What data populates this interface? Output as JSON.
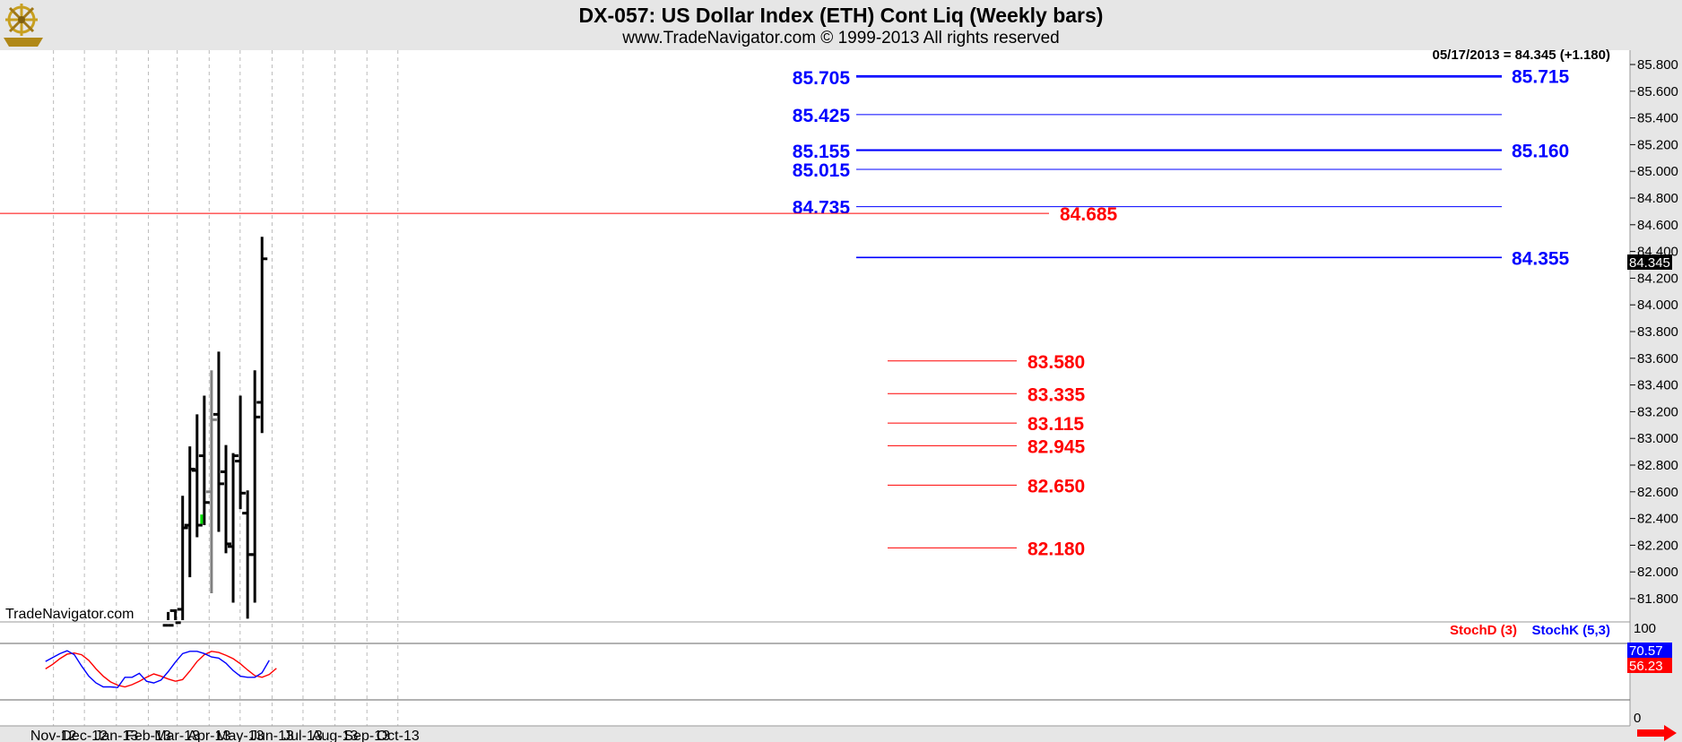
{
  "header": {
    "title": "DX-057:  US Dollar Index (ETH) Cont Liq  (Weekly bars)",
    "copyright": "www.TradeNavigator.com © 1999-2013 All rights reserved",
    "last_value": "05/17/2013 = 84.345 (+1.180)",
    "watermark": "TradeNavigator.com",
    "logo_icon": "ship-wheel-logo"
  },
  "colors": {
    "blue_levels": "#0000ff",
    "red_levels": "#ff0000",
    "bar": "#000000",
    "stochK": "#0000ff",
    "stochD": "#ff0000",
    "price_tag": "#000000",
    "stochK_tag": "#0000ff",
    "stochD_tag": "#ff0000"
  },
  "chart_data": [
    {
      "type": "ohlc",
      "title": "DX-057:  US Dollar Index (ETH) Cont Liq  (Weekly bars)",
      "ylim": [
        81.6,
        85.9
      ],
      "grid": true,
      "x_ticks": [
        "Nov-12",
        "Dec-12",
        "Jan-13",
        "Feb-13",
        "Mar-13",
        "Apr-13",
        "May-13",
        "Jun-13",
        "Jul-13",
        "Aug-13",
        "Sep-13",
        "Oct-13"
      ],
      "y_ticks": [
        "85.800",
        "85.600",
        "85.400",
        "85.200",
        "85.000",
        "84.800",
        "84.600",
        "84.400",
        "84.200",
        "84.000",
        "83.800",
        "83.600",
        "83.400",
        "83.200",
        "83.000",
        "82.800",
        "82.600",
        "82.400",
        "82.200",
        "82.000",
        "81.800"
      ],
      "last_price_tag": "84.345",
      "bars": [
        {
          "date": "2013-02-22",
          "high": 81.7,
          "low": 81.6,
          "open": 81.6,
          "close": 81.6,
          "color": "#000000"
        },
        {
          "date": "2013-03-01",
          "high": 81.72,
          "low": 81.6,
          "open": 81.71,
          "close": 81.62,
          "color": "#000000"
        },
        {
          "date": "2013-03-08",
          "high": 82.57,
          "low": 81.6,
          "open": 81.72,
          "close": 82.33,
          "color": "#000000"
        },
        {
          "date": "2013-03-15",
          "high": 82.94,
          "low": 81.96,
          "open": 82.35,
          "close": 82.77,
          "color": "#000000"
        },
        {
          "date": "2013-03-22",
          "high": 83.18,
          "low": 82.26,
          "open": 82.76,
          "close": 82.35,
          "color": "#000000"
        },
        {
          "date": "2013-03-29",
          "high": 83.32,
          "low": 82.35,
          "open": 82.87,
          "close": 82.52,
          "color": "#000000"
        },
        {
          "date": "2013-04-05",
          "high": 83.51,
          "low": 81.84,
          "open": 82.6,
          "close": 83.14,
          "color": "#808080"
        },
        {
          "date": "2013-04-12",
          "high": 83.65,
          "low": 82.3,
          "open": 83.18,
          "close": 82.66,
          "color": "#000000"
        },
        {
          "date": "2013-04-19",
          "high": 82.95,
          "low": 82.14,
          "open": 82.75,
          "close": 82.21,
          "color": "#000000"
        },
        {
          "date": "2013-04-26",
          "high": 82.89,
          "low": 81.77,
          "open": 82.19,
          "close": 82.87,
          "color": "#000000"
        },
        {
          "date": "2013-05-03",
          "high": 83.32,
          "low": 82.47,
          "open": 82.83,
          "close": 82.59,
          "color": "#000000"
        },
        {
          "date": "2013-05-10",
          "high": 82.61,
          "low": 81.65,
          "open": 82.44,
          "close": 82.13,
          "color": "#000000"
        },
        {
          "date": "2013-05-17",
          "high": 83.51,
          "low": 81.77,
          "open": 82.13,
          "close": 83.16,
          "color": "#000000"
        },
        {
          "date": "2013-05-24",
          "high": 84.51,
          "low": 83.04,
          "open": 83.27,
          "close": 84.345,
          "color": "#000000"
        }
      ],
      "green_tick": {
        "date": "2013-03-29",
        "from": 82.43,
        "to": 82.36
      },
      "blue_levels": [
        {
          "value": 85.705,
          "label": "85.705",
          "side": "left"
        },
        {
          "value": 85.715,
          "label": "85.715",
          "side": "right"
        },
        {
          "value": 85.425,
          "label": "85.425",
          "side": "left"
        },
        {
          "value": 85.155,
          "label": "85.155",
          "side": "left"
        },
        {
          "value": 85.16,
          "label": "85.160",
          "side": "right"
        },
        {
          "value": 85.015,
          "label": "85.015",
          "side": "left"
        },
        {
          "value": 84.735,
          "label": "84.735",
          "side": "left"
        },
        {
          "value": 84.355,
          "label": "84.355",
          "side": "right"
        }
      ],
      "red_levels": [
        {
          "value": 84.685,
          "label": "84.685",
          "full_width": true
        },
        {
          "value": 83.58,
          "label": "83.580"
        },
        {
          "value": 83.335,
          "label": "83.335"
        },
        {
          "value": 83.115,
          "label": "83.115"
        },
        {
          "value": 82.945,
          "label": "82.945"
        },
        {
          "value": 82.65,
          "label": "82.650"
        },
        {
          "value": 82.18,
          "label": "82.180"
        }
      ]
    },
    {
      "type": "line",
      "title": "",
      "ylim": [
        0,
        100
      ],
      "y_ticks": [
        "100",
        "0"
      ],
      "series": [
        {
          "name": "StochD (3)",
          "color": "#ff0000",
          "points": [
            [
              "2012-10-26",
              55
            ],
            [
              "2012-11-02",
              63
            ],
            [
              "2012-11-09",
              73
            ],
            [
              "2012-11-16",
              81
            ],
            [
              "2012-11-23",
              83
            ],
            [
              "2012-11-30",
              80
            ],
            [
              "2012-12-07",
              70
            ],
            [
              "2012-12-14",
              55
            ],
            [
              "2012-12-21",
              42
            ],
            [
              "2012-12-28",
              32
            ],
            [
              "2013-01-04",
              26
            ],
            [
              "2013-01-11",
              23
            ],
            [
              "2013-01-18",
              27
            ],
            [
              "2013-01-25",
              33
            ],
            [
              "2013-02-01",
              40
            ],
            [
              "2013-02-08",
              46
            ],
            [
              "2013-02-15",
              42
            ],
            [
              "2013-02-22",
              37
            ],
            [
              "2013-03-01",
              33
            ],
            [
              "2013-03-08",
              36
            ],
            [
              "2013-03-15",
              51
            ],
            [
              "2013-03-22",
              68
            ],
            [
              "2013-03-29",
              80
            ],
            [
              "2013-04-05",
              86
            ],
            [
              "2013-04-12",
              84
            ],
            [
              "2013-04-19",
              79
            ],
            [
              "2013-04-26",
              73
            ],
            [
              "2013-05-03",
              64
            ],
            [
              "2013-05-10",
              53
            ],
            [
              "2013-05-17",
              43
            ],
            [
              "2013-05-24",
              40
            ],
            [
              "2013-05-31",
              45
            ],
            [
              "2013-06-07",
              56
            ]
          ]
        },
        {
          "name": "StochK (5,3)",
          "color": "#0000ff",
          "points": [
            [
              "2012-10-26",
              68
            ],
            [
              "2012-11-02",
              75
            ],
            [
              "2012-11-09",
              82
            ],
            [
              "2012-11-16",
              87
            ],
            [
              "2012-11-23",
              80
            ],
            [
              "2012-11-30",
              60
            ],
            [
              "2012-12-07",
              42
            ],
            [
              "2012-12-14",
              30
            ],
            [
              "2012-12-21",
              23
            ],
            [
              "2012-12-28",
              23
            ],
            [
              "2013-01-04",
              22
            ],
            [
              "2013-01-11",
              40
            ],
            [
              "2013-01-18",
              40
            ],
            [
              "2013-01-25",
              47
            ],
            [
              "2013-02-01",
              33
            ],
            [
              "2013-02-08",
              30
            ],
            [
              "2013-02-15",
              35
            ],
            [
              "2013-02-22",
              50
            ],
            [
              "2013-03-01",
              67
            ],
            [
              "2013-03-08",
              82
            ],
            [
              "2013-03-15",
              86
            ],
            [
              "2013-03-22",
              86
            ],
            [
              "2013-03-29",
              82
            ],
            [
              "2013-04-05",
              76
            ],
            [
              "2013-04-12",
              74
            ],
            [
              "2013-04-19",
              65
            ],
            [
              "2013-04-26",
              52
            ],
            [
              "2013-05-03",
              42
            ],
            [
              "2013-05-10",
              40
            ],
            [
              "2013-05-17",
              40
            ],
            [
              "2013-05-24",
              48
            ],
            [
              "2013-05-31",
              70
            ]
          ]
        }
      ],
      "stochD_tag": "56.23",
      "stochK_tag": "70.57"
    }
  ]
}
